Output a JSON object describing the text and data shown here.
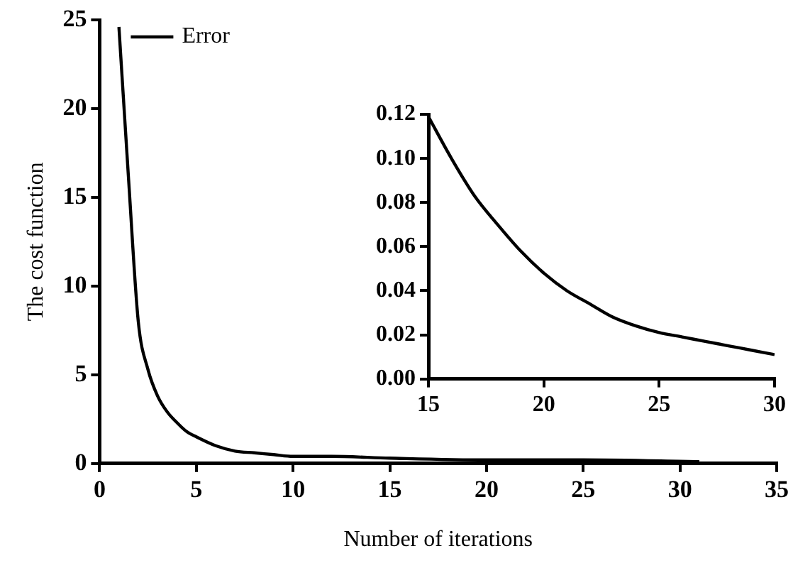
{
  "chart_data": [
    {
      "type": "line",
      "xlabel": "Number of iterations",
      "ylabel": "The cost function",
      "x": [
        1,
        1.5,
        2,
        2.5,
        3,
        3.5,
        4,
        4.5,
        5,
        6,
        7,
        8,
        9,
        10,
        12,
        15,
        20,
        25,
        31
      ],
      "series": [
        {
          "name": "Error",
          "color": "#000000",
          "values": [
            24.6,
            16,
            8,
            5.3,
            3.8,
            2.9,
            2.3,
            1.8,
            1.5,
            1.0,
            0.7,
            0.6,
            0.5,
            0.4,
            0.4,
            0.3,
            0.2,
            0.2,
            0.1
          ]
        }
      ],
      "xlim": [
        0,
        35
      ],
      "xticks": [
        0,
        5,
        10,
        15,
        20,
        25,
        30,
        35
      ],
      "ylim": [
        0,
        25
      ],
      "yticks": [
        0,
        5,
        10,
        15,
        20,
        25
      ],
      "grid": false,
      "legend": "top left",
      "marker": "none",
      "line_style": "solid"
    },
    {
      "type": "line",
      "x": [
        15,
        16,
        17,
        18,
        19,
        20,
        21,
        22,
        23,
        24,
        25,
        26,
        27,
        28,
        29,
        30
      ],
      "series": [
        {
          "color": "#000000",
          "values": [
            0.119,
            0.1,
            0.083,
            0.07,
            0.058,
            0.048,
            0.04,
            0.034,
            0.028,
            0.024,
            0.021,
            0.019,
            0.017,
            0.015,
            0.013,
            0.011
          ]
        }
      ],
      "xlim": [
        15,
        30
      ],
      "xticks": [
        15,
        20,
        25,
        30
      ],
      "ylim": [
        0,
        0.12
      ],
      "yticks": [
        {
          "value": 0,
          "label": "0.00"
        },
        0.02,
        0.04,
        0.06,
        0.08,
        {
          "value": 0.1,
          "label": "0.10"
        },
        {
          "value": 0.12,
          "label": "0.12"
        }
      ],
      "grid": false,
      "marker": "none",
      "line_style": "solid"
    }
  ]
}
